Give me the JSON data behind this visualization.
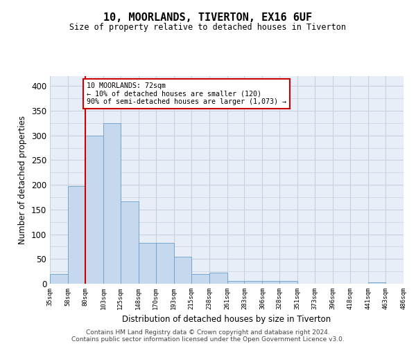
{
  "title": "10, MOORLANDS, TIVERTON, EX16 6UF",
  "subtitle": "Size of property relative to detached houses in Tiverton",
  "xlabel": "Distribution of detached houses by size in Tiverton",
  "ylabel": "Number of detached properties",
  "footer_line1": "Contains HM Land Registry data © Crown copyright and database right 2024.",
  "footer_line2": "Contains public sector information licensed under the Open Government Licence v3.0.",
  "bar_color": "#c5d8ee",
  "bar_edge_color": "#6a9fc8",
  "grid_color": "#c8d0de",
  "background_color": "#e8eef8",
  "annotation_line1": "10 MOORLANDS: 72sqm",
  "annotation_line2": "← 10% of detached houses are smaller (120)",
  "annotation_line3": "90% of semi-detached houses are larger (1,073) →",
  "annotation_box_edgecolor": "#cc0000",
  "vline_color": "#cc0000",
  "vline_x": 80,
  "bins": [
    35,
    58,
    80,
    103,
    125,
    148,
    170,
    193,
    215,
    238,
    261,
    283,
    306,
    328,
    351,
    373,
    396,
    418,
    441,
    463,
    486
  ],
  "counts": [
    20,
    197,
    300,
    325,
    167,
    82,
    82,
    55,
    20,
    22,
    6,
    6,
    5,
    5,
    0,
    0,
    0,
    0,
    3,
    0
  ],
  "ylim": [
    0,
    420
  ],
  "yticks": [
    0,
    50,
    100,
    150,
    200,
    250,
    300,
    350,
    400
  ]
}
